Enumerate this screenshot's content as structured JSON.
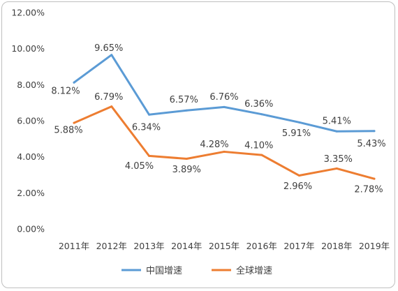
{
  "chart_data": {
    "type": "line",
    "title": "",
    "xlabel": "",
    "ylabel": "",
    "categories": [
      "2011年",
      "2012年",
      "2013年",
      "2014年",
      "2015年",
      "2016年",
      "2017年",
      "2018年",
      "2019年"
    ],
    "ylim": [
      0,
      0.12
    ],
    "y_ticks": [
      "0.00%",
      "2.00%",
      "4.00%",
      "6.00%",
      "8.00%",
      "10.00%",
      "12.00%"
    ],
    "grid": false,
    "legend_position": "bottom",
    "series": [
      {
        "name": "中国增速",
        "color": "#5b9bd5",
        "values": [
          0.0812,
          0.0965,
          0.0634,
          0.0657,
          0.0676,
          0.0636,
          0.0591,
          0.0541,
          0.0543
        ],
        "labels": [
          "8.12%",
          "9.65%",
          "6.34%",
          "6.57%",
          "6.76%",
          "6.36%",
          "5.91%",
          "5.41%",
          "5.43%"
        ]
      },
      {
        "name": "全球增速",
        "color": "#ed7d31",
        "values": [
          0.0588,
          0.0679,
          0.0405,
          0.0389,
          0.0428,
          0.041,
          0.0296,
          0.0335,
          0.0278
        ],
        "labels": [
          "5.88%",
          "6.79%",
          "4.05%",
          "3.89%",
          "4.28%",
          "4.10%",
          "2.96%",
          "3.35%",
          "2.78%"
        ]
      }
    ]
  }
}
